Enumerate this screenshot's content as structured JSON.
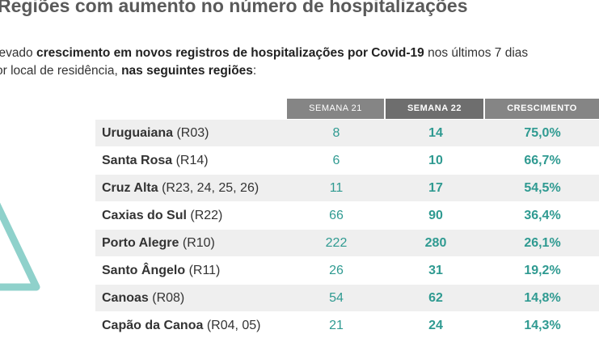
{
  "header": {
    "title": "Regiões com aumento no número de hospitalizações"
  },
  "intro": {
    "parts": [
      "levado ",
      "crescimento em novos registros de hospitalizações por Covid-19",
      " nos últimos 7 dias",
      "or local de residência, ",
      "nas seguintes regiões",
      ":"
    ]
  },
  "table": {
    "columns": [
      "SEMANA 21",
      "SEMANA 22",
      "CRESCIMENTO"
    ],
    "rows": [
      [
        "Uruguaiana",
        "(R03)",
        "8",
        "14",
        "75,0%"
      ],
      [
        "Santa Rosa",
        "(R14)",
        "6",
        "10",
        "66,7%"
      ],
      [
        "Cruz Alta",
        "(R23, 24, 25, 26)",
        "11",
        "17",
        "54,5%"
      ],
      [
        "Caxias do Sul",
        "(R22)",
        "66",
        "90",
        "36,4%"
      ],
      [
        "Porto Alegre",
        "(R10)",
        "222",
        "280",
        "26,1%"
      ],
      [
        "Santo Ângelo",
        "(R11)",
        "26",
        "31",
        "19,2%"
      ],
      [
        "Canoas",
        "(R08)",
        "54",
        "62",
        "14,8%"
      ],
      [
        "Capão da Canoa",
        "(R04, 05)",
        "21",
        "24",
        "14,3%"
      ]
    ]
  }
}
